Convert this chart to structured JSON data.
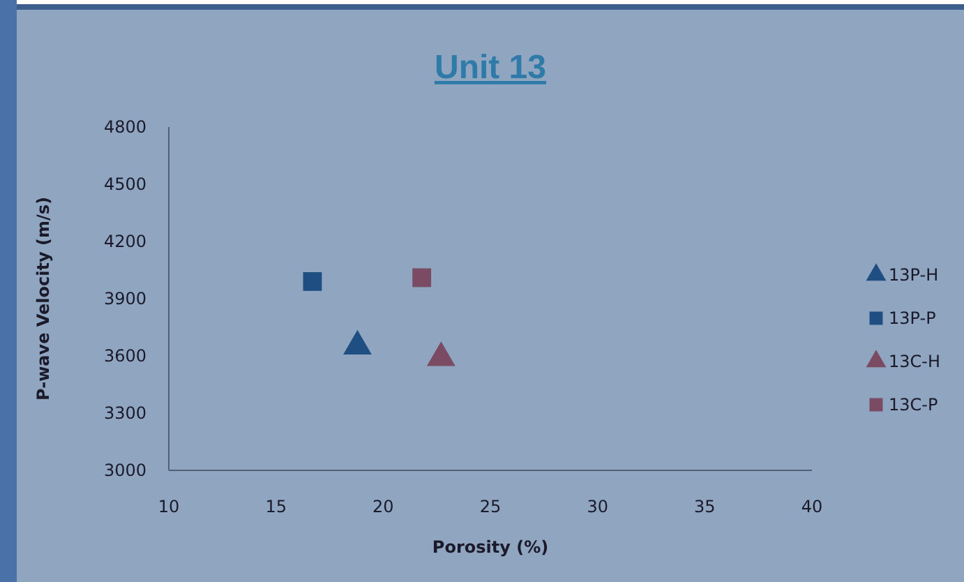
{
  "chart_data": {
    "type": "scatter",
    "title": "Unit 13",
    "xlabel": "Porosity (%)",
    "ylabel": "P-wave Velocity (m/s)",
    "xlim": [
      10,
      40
    ],
    "xticks": [
      10,
      15,
      20,
      25,
      30,
      35,
      40
    ],
    "ylim": [
      3000,
      4800
    ],
    "yticks": [
      3000,
      3300,
      3600,
      3900,
      4200,
      4500,
      4800
    ],
    "grid": false,
    "legend": "right",
    "series": [
      {
        "name": "13P-H",
        "color": "#1f4e83",
        "marker": "triangle",
        "x": [
          18.8
        ],
        "values": [
          3650
        ]
      },
      {
        "name": "13P-P",
        "color": "#1f4e83",
        "marker": "square",
        "x": [
          16.7
        ],
        "values": [
          3990
        ]
      },
      {
        "name": "13C-H",
        "color": "#7b4a63",
        "marker": "triangle",
        "x": [
          22.7
        ],
        "values": [
          3590
        ]
      },
      {
        "name": "13C-P",
        "color": "#7b4a63",
        "marker": "square",
        "x": [
          21.8
        ],
        "values": [
          4010
        ]
      }
    ]
  }
}
